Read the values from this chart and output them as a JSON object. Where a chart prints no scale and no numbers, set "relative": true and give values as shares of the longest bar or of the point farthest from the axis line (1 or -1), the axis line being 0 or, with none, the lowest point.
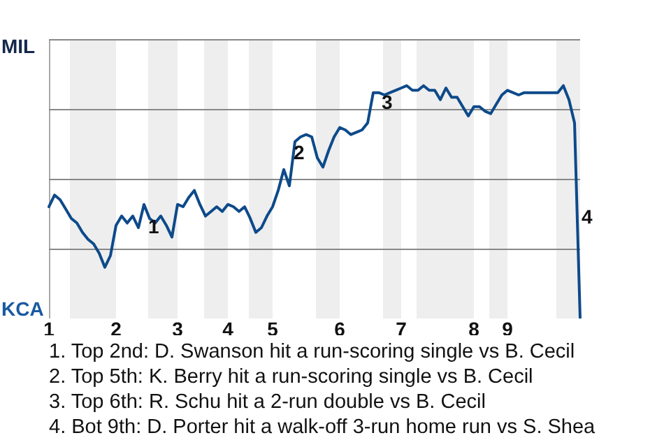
{
  "chart_data": {
    "type": "line",
    "relative": true,
    "categories": [
      "1",
      null,
      null,
      null,
      null,
      null,
      null,
      null,
      null,
      null,
      null,
      null,
      "2",
      null,
      null,
      null,
      null,
      null,
      null,
      null,
      null,
      null,
      null,
      "3",
      null,
      null,
      null,
      null,
      null,
      null,
      null,
      null,
      "4",
      null,
      null,
      null,
      null,
      null,
      null,
      null,
      "5",
      null,
      null,
      null,
      null,
      null,
      null,
      null,
      null,
      null,
      null,
      null,
      "6",
      null,
      null,
      null,
      null,
      null,
      null,
      null,
      null,
      null,
      null,
      "7",
      null,
      null,
      null,
      null,
      null,
      null,
      null,
      null,
      null,
      null,
      null,
      null,
      "8",
      null,
      null,
      null,
      null,
      null,
      "9",
      null,
      null,
      null,
      null,
      null,
      null,
      null,
      null,
      null,
      null,
      null,
      null,
      null
    ],
    "series": [
      {
        "color": "#0d4a8a",
        "values": [
          0.48,
          0.53,
          0.51,
          0.47,
          0.43,
          0.41,
          0.37,
          0.34,
          0.32,
          0.28,
          0.22,
          0.27,
          0.4,
          0.44,
          0.41,
          0.44,
          0.39,
          0.49,
          0.43,
          0.41,
          0.44,
          0.4,
          0.35,
          0.49,
          0.48,
          0.52,
          0.55,
          0.49,
          0.44,
          0.46,
          0.48,
          0.46,
          0.49,
          0.48,
          0.46,
          0.48,
          0.43,
          0.37,
          0.39,
          0.44,
          0.48,
          0.55,
          0.64,
          0.57,
          0.76,
          0.78,
          0.79,
          0.78,
          0.69,
          0.65,
          0.72,
          0.78,
          0.82,
          0.81,
          0.79,
          0.8,
          0.81,
          0.84,
          0.97,
          0.97,
          0.96,
          0.97,
          0.98,
          0.99,
          1,
          0.98,
          0.98,
          1,
          0.98,
          0.98,
          0.94,
          0.99,
          0.95,
          0.95,
          0.91,
          0.87,
          0.91,
          0.91,
          0.89,
          0.88,
          0.92,
          0.96,
          0.98,
          0.97,
          0.96,
          0.97,
          0.97,
          0.97,
          0.97,
          0.97,
          0.97,
          0.97,
          1,
          0.94,
          0.84,
          0
        ]
      }
    ],
    "grid": "y",
    "annotations": [
      "MIL",
      "KCA",
      "1",
      "2",
      "3",
      "4",
      "1. Top 2nd: D. Swanson hit a run-scoring single vs B. Cecil",
      "2. Top 5th: K. Berry hit a run-scoring single vs B. Cecil",
      "3. Top 6th: R. Schu hit a 2-run double vs B. Cecil",
      "4. Bot 9th: D. Porter hit a walk-off 3-run home run vs S. Shea"
    ]
  }
}
